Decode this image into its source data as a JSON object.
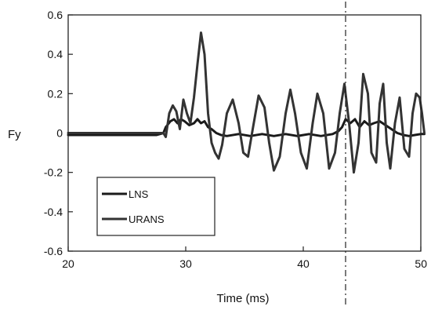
{
  "chart_data": {
    "type": "line",
    "title": "",
    "xlabel": "Time (ms)",
    "ylabel": "Fy",
    "xlim": [
      20,
      50
    ],
    "ylim": [
      -0.6,
      0.6
    ],
    "xticks": [
      20,
      30,
      40,
      50
    ],
    "yticks": [
      0.6,
      0.4,
      0.2,
      0,
      -0.2,
      -0.4,
      -0.6
    ],
    "xtick_labels": [
      "20",
      "30",
      "40",
      "50"
    ],
    "ytick_labels": [
      "0.6",
      "0.4",
      "0.2",
      "0",
      "-0.2",
      "-0.4",
      "-0.6"
    ],
    "grid": false,
    "legend_position": "lower-left",
    "vertical_reference_line": {
      "x": 43.6,
      "style": "dash-dot"
    },
    "series": [
      {
        "name": "LNS",
        "color": "#1a1a1a",
        "x": [
          20,
          22,
          24,
          26,
          27.5,
          28.1,
          28.3,
          28.7,
          29.0,
          29.3,
          29.6,
          29.9,
          30.3,
          30.7,
          31.0,
          31.3,
          31.6,
          31.9,
          32.2,
          32.6,
          33.0,
          33.5,
          34.5,
          35.5,
          36.5,
          37.5,
          38.5,
          39.5,
          40.5,
          41.5,
          42.5,
          43.0,
          43.3,
          43.6,
          44.0,
          44.4,
          44.8,
          45.2,
          45.6,
          46.0,
          46.5,
          47.0,
          47.5,
          48.0,
          48.5,
          49.0,
          49.5,
          50.0,
          50.3
        ],
        "y": [
          -0.01,
          -0.01,
          -0.01,
          -0.01,
          -0.01,
          0.0,
          0.03,
          0.06,
          0.07,
          0.05,
          0.07,
          0.06,
          0.04,
          0.05,
          0.07,
          0.05,
          0.06,
          0.03,
          0.02,
          0.0,
          -0.01,
          -0.015,
          -0.005,
          -0.015,
          -0.005,
          -0.015,
          -0.005,
          -0.015,
          -0.005,
          -0.015,
          -0.005,
          0.01,
          0.03,
          0.07,
          0.05,
          0.07,
          0.03,
          0.06,
          0.04,
          0.05,
          0.06,
          0.04,
          0.02,
          0.0,
          -0.01,
          -0.015,
          -0.01,
          -0.005,
          -0.005
        ]
      },
      {
        "name": "URANS",
        "color": "#333333",
        "x": [
          20,
          22,
          24,
          26,
          27.5,
          28.1,
          28.3,
          28.6,
          28.9,
          29.2,
          29.5,
          29.8,
          30.1,
          30.4,
          30.7,
          31.0,
          31.3,
          31.6,
          31.9,
          32.2,
          32.5,
          32.8,
          33.1,
          33.5,
          34.0,
          34.5,
          34.9,
          35.3,
          35.7,
          36.2,
          36.7,
          37.1,
          37.5,
          38.0,
          38.5,
          38.9,
          39.3,
          39.8,
          40.3,
          40.8,
          41.2,
          41.7,
          42.2,
          42.7,
          43.1,
          43.5,
          43.9,
          44.3,
          44.7,
          45.1,
          45.5,
          45.8,
          46.2,
          46.5,
          46.8,
          47.1,
          47.4,
          47.8,
          48.2,
          48.6,
          49.0,
          49.3,
          49.6,
          49.9,
          50.1,
          50.3
        ],
        "y": [
          0,
          0,
          0,
          0,
          0,
          0.0,
          -0.02,
          0.1,
          0.14,
          0.11,
          0.02,
          0.17,
          0.1,
          0.05,
          0.18,
          0.35,
          0.51,
          0.4,
          0.1,
          -0.05,
          -0.1,
          -0.13,
          -0.06,
          0.1,
          0.17,
          0.05,
          -0.1,
          -0.12,
          0.02,
          0.19,
          0.13,
          -0.05,
          -0.19,
          -0.12,
          0.1,
          0.22,
          0.1,
          -0.1,
          -0.18,
          0.05,
          0.2,
          0.1,
          -0.18,
          -0.1,
          0.1,
          0.25,
          0.05,
          -0.2,
          -0.05,
          0.3,
          0.2,
          -0.1,
          -0.15,
          0.15,
          0.25,
          -0.05,
          -0.18,
          0.05,
          0.18,
          -0.08,
          -0.12,
          0.1,
          0.2,
          0.18,
          0.1,
          0.0
        ]
      }
    ]
  }
}
